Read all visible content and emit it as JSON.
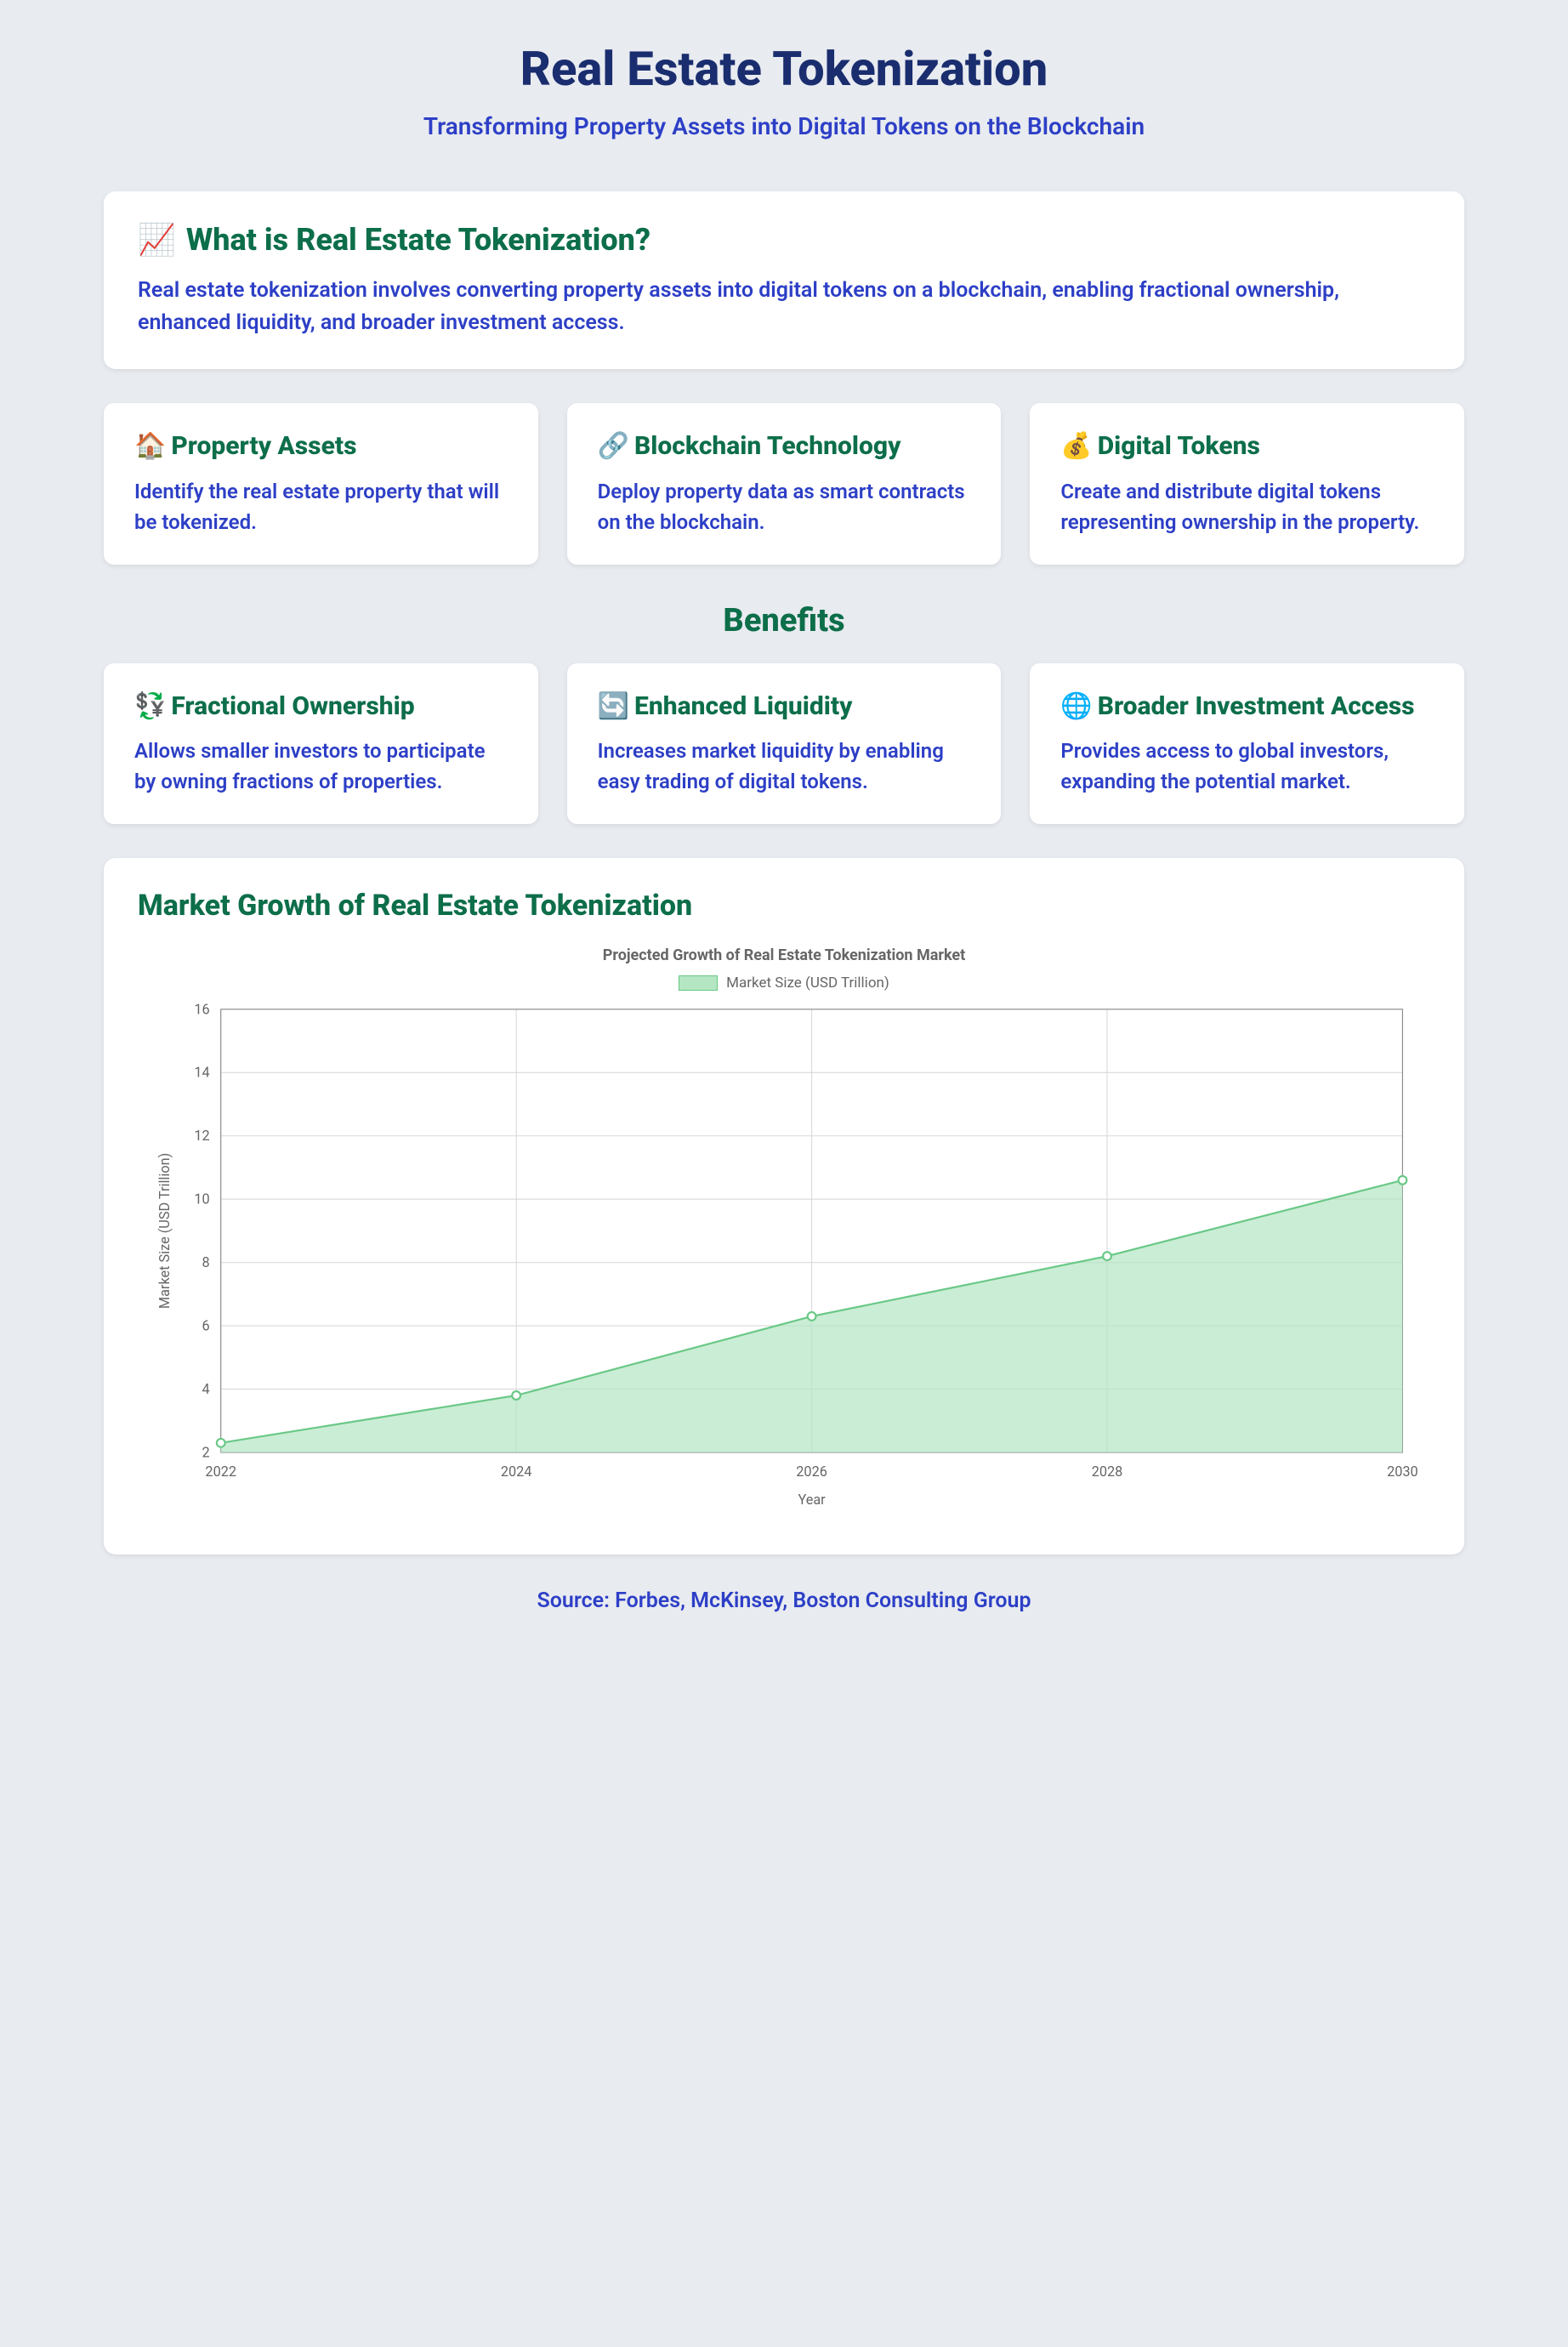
{
  "header": {
    "title": "Real Estate Tokenization",
    "subtitle": "Transforming Property Assets into Digital Tokens on the Blockchain"
  },
  "overview": {
    "icon": "📈",
    "title": "What is Real Estate Tokenization?",
    "text": "Real estate tokenization involves converting property assets into digital tokens on a blockchain, enabling fractional ownership, enhanced liquidity, and broader investment access."
  },
  "process": [
    {
      "icon": "🏠",
      "title": "Property Assets",
      "text": "Identify the real estate property that will be tokenized."
    },
    {
      "icon": "🔗",
      "title": "Blockchain Technology",
      "text": "Deploy property data as smart contracts on the blockchain."
    },
    {
      "icon": "💰",
      "title": "Digital Tokens",
      "text": "Create and distribute digital tokens representing ownership in the property."
    }
  ],
  "benefits_heading": "Benefits",
  "benefits": [
    {
      "icon": "💱",
      "title": "Fractional Ownership",
      "text": "Allows smaller investors to participate by owning fractions of properties."
    },
    {
      "icon": "🔄",
      "title": "Enhanced Liquidity",
      "text": "Increases market liquidity by enabling easy trading of digital tokens."
    },
    {
      "icon": "🌐",
      "title": "Broader Investment Access",
      "text": "Provides access to global investors, expanding the potential market."
    }
  ],
  "chart": {
    "type": "area",
    "section_title": "Market Growth of Real Estate Tokenization",
    "chart_title": "Projected Growth of Real Estate Tokenization Market",
    "legend_label": "Market Size (USD Trillion)",
    "x_label": "Year",
    "y_label": "Market Size (USD Trillion)",
    "x_values": [
      2022,
      2024,
      2026,
      2028,
      2030
    ],
    "y_values": [
      2.3,
      3.8,
      6.3,
      8.2,
      10.6
    ],
    "xlim": [
      2022,
      2030
    ],
    "ylim": [
      2,
      16
    ],
    "ytick_step": 2,
    "line_color": "#69c886",
    "fill_color": "#b4e6c3",
    "fill_opacity": 0.7,
    "point_radius": 4.5,
    "background_color": "#ffffff",
    "grid_color": "#d9d9d9",
    "axis_color": "#888888",
    "title_color": "#666666",
    "title_fontsize": 18,
    "label_fontsize": 15,
    "tick_fontsize": 15
  },
  "source": "Source: Forbes, McKinsey, Boston Consulting Group",
  "colors": {
    "page_bg": "#e8ebf0",
    "card_bg": "#ffffff",
    "title_navy": "#1a2d6e",
    "body_blue": "#2d3fc6",
    "heading_green": "#0d6e4a"
  }
}
